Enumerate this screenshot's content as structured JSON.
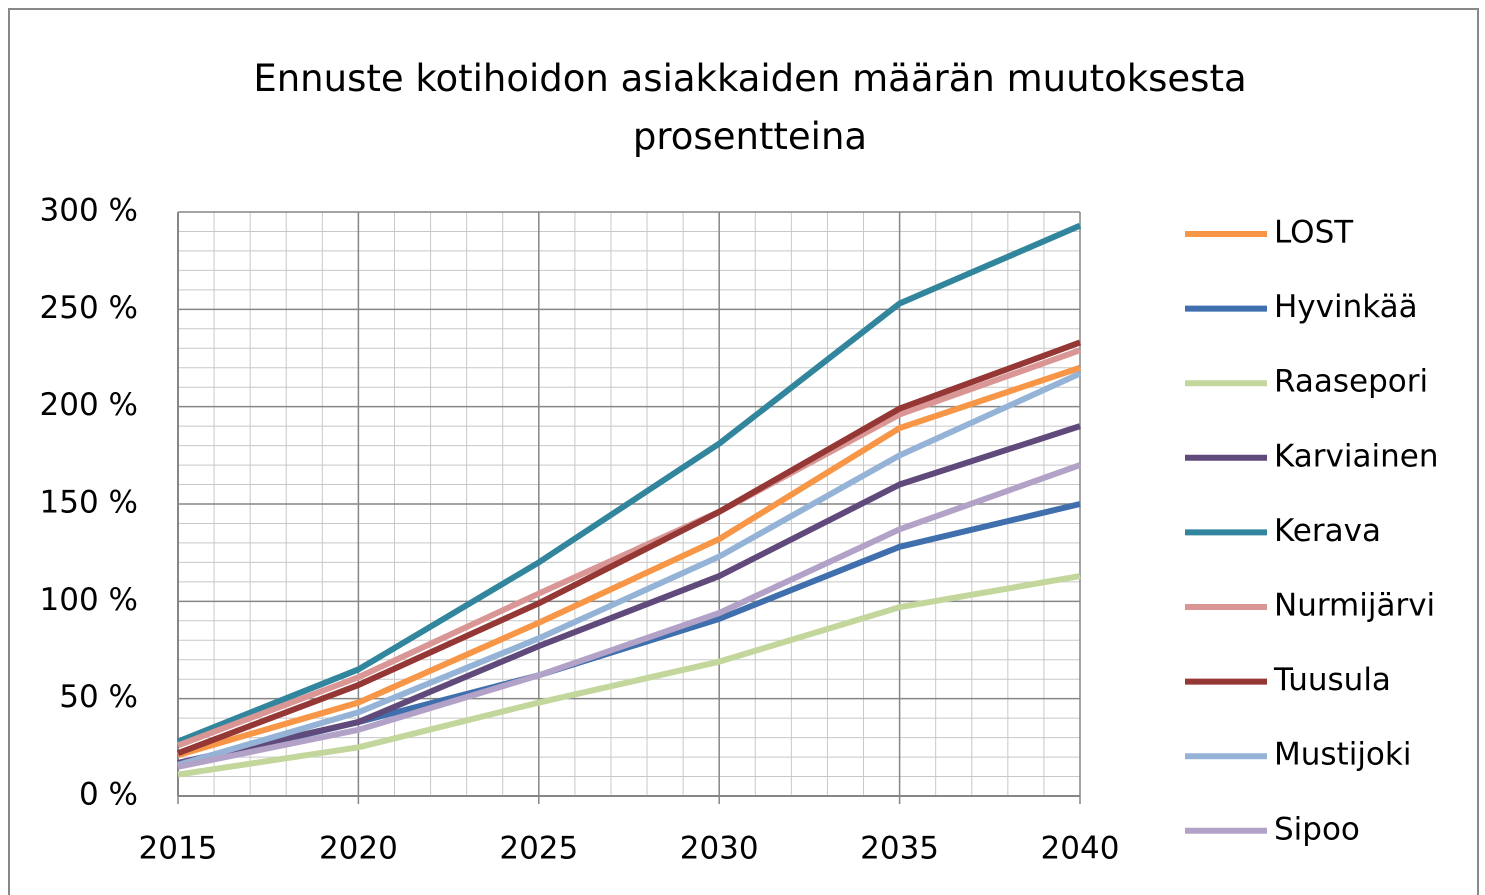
{
  "chart_data": {
    "type": "line",
    "title": "Ennuste kotihoidon asiakkaiden määrän muutoksesta prosentteina",
    "x": [
      2015,
      2020,
      2025,
      2030,
      2035,
      2040
    ],
    "xlim": [
      2015,
      2040
    ],
    "xticks": [
      2015,
      2020,
      2025,
      2030,
      2035,
      2040
    ],
    "ylim": [
      0,
      300
    ],
    "yticks": [
      {
        "value": 0,
        "label": "0 %"
      },
      {
        "value": 50,
        "label": "50 %"
      },
      {
        "value": 100,
        "label": "100 %"
      },
      {
        "value": 150,
        "label": "150 %"
      },
      {
        "value": 200,
        "label": "200 %"
      },
      {
        "value": 250,
        "label": "250 %"
      },
      {
        "value": 300,
        "label": "300 %"
      }
    ],
    "grid": true,
    "minor_grid": true,
    "legend": "right",
    "series": [
      {
        "name": "LOST",
        "color": "#f79646",
        "values": [
          21,
          48,
          89,
          132,
          189,
          220
        ]
      },
      {
        "name": "Hyvinkää",
        "color": "#3f6fad",
        "values": [
          16,
          38,
          62,
          91,
          128,
          150
        ]
      },
      {
        "name": "Raasepori",
        "color": "#c3d69b",
        "values": [
          11,
          25,
          48,
          69,
          97,
          113
        ]
      },
      {
        "name": "Karviainen",
        "color": "#604a7b",
        "values": [
          17,
          38,
          77,
          113,
          160,
          190
        ]
      },
      {
        "name": "Kerava",
        "color": "#31859c",
        "values": [
          28,
          65,
          120,
          181,
          253,
          293
        ]
      },
      {
        "name": "Nurmijärvi",
        "color": "#d99694",
        "values": [
          26,
          61,
          104,
          146,
          196,
          229
        ]
      },
      {
        "name": "Tuusula",
        "color": "#953735",
        "values": [
          22,
          57,
          99,
          146,
          199,
          233
        ]
      },
      {
        "name": "Mustijoki",
        "color": "#95b3d7",
        "values": [
          16,
          43,
          81,
          123,
          175,
          217
        ]
      },
      {
        "name": "Sipoo",
        "color": "#b3a2c7",
        "values": [
          15,
          34,
          62,
          94,
          137,
          170
        ]
      }
    ]
  }
}
